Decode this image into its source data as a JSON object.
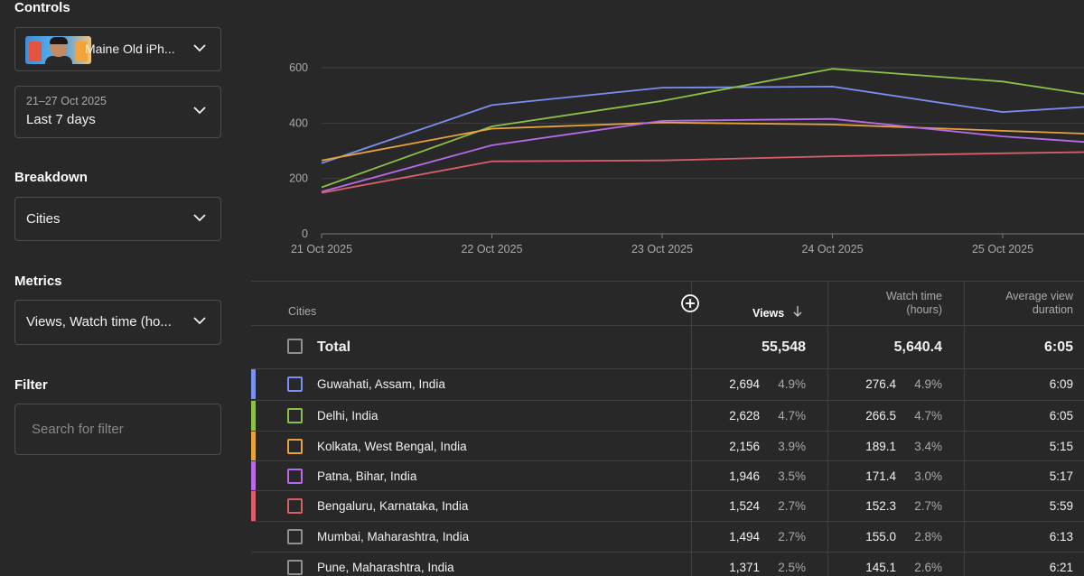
{
  "controls": {
    "title": "Controls",
    "video_title": "Maine Old iPh...",
    "date_range": "21–27 Oct 2025",
    "date_label": "Last 7 days"
  },
  "breakdown": {
    "title": "Breakdown",
    "value": "Cities"
  },
  "metrics": {
    "title": "Metrics",
    "value": "Views, Watch time (ho..."
  },
  "filter": {
    "title": "Filter",
    "placeholder": "Search for filter"
  },
  "chart_data": {
    "type": "line",
    "title": "",
    "xlabel": "",
    "ylabel": "",
    "categories": [
      "21 Oct 2025",
      "22 Oct 2025",
      "23 Oct 2025",
      "24 Oct 2025",
      "25 Oct 2025"
    ],
    "x_values": [
      0,
      1,
      2,
      3,
      4,
      4.48
    ],
    "y_ticks": [
      0,
      200,
      400,
      600
    ],
    "ylim": [
      0,
      600
    ],
    "series": [
      {
        "name": "Guwahati, Assam, India",
        "color": "#7b8ff0",
        "values": [
          255,
          465,
          528,
          532,
          440,
          458
        ]
      },
      {
        "name": "Delhi, India",
        "color": "#8cc04a",
        "values": [
          168,
          388,
          480,
          596,
          550,
          505
        ]
      },
      {
        "name": "Kolkata, West Bengal, India",
        "color": "#e8a33c",
        "values": [
          265,
          380,
          402,
          395,
          372,
          362
        ]
      },
      {
        "name": "Patna, Bihar, India",
        "color": "#b86ae8",
        "values": [
          152,
          320,
          408,
          415,
          352,
          332
        ]
      },
      {
        "name": "Bengaluru, Karnataka, India",
        "color": "#d85f6a",
        "values": [
          148,
          262,
          265,
          280,
          291,
          295
        ]
      }
    ]
  },
  "table": {
    "headers": {
      "cities": "Cities",
      "views": "Views",
      "watch_time_line1": "Watch time",
      "watch_time_line2": "(hours)",
      "avd_line1": "Average view",
      "avd_line2": "duration"
    },
    "total": {
      "label": "Total",
      "views": "55,548",
      "watch_time": "5,640.4",
      "avd": "6:05"
    },
    "rows": [
      {
        "city": "Guwahati, Assam, India",
        "views": "2,694",
        "views_pct": "4.9%",
        "watch": "276.4",
        "watch_pct": "4.9%",
        "avd": "6:09",
        "color": "#7b8ff0",
        "selected": true
      },
      {
        "city": "Delhi, India",
        "views": "2,628",
        "views_pct": "4.7%",
        "watch": "266.5",
        "watch_pct": "4.7%",
        "avd": "6:05",
        "color": "#8cc04a",
        "selected": true
      },
      {
        "city": "Kolkata, West Bengal, India",
        "views": "2,156",
        "views_pct": "3.9%",
        "watch": "189.1",
        "watch_pct": "3.4%",
        "avd": "5:15",
        "color": "#e8a33c",
        "selected": true
      },
      {
        "city": "Patna, Bihar, India",
        "views": "1,946",
        "views_pct": "3.5%",
        "watch": "171.4",
        "watch_pct": "3.0%",
        "avd": "5:17",
        "color": "#b86ae8",
        "selected": true
      },
      {
        "city": "Bengaluru, Karnataka, India",
        "views": "1,524",
        "views_pct": "2.7%",
        "watch": "152.3",
        "watch_pct": "2.7%",
        "avd": "5:59",
        "color": "#d85f6a",
        "selected": true
      },
      {
        "city": "Mumbai, Maharashtra, India",
        "views": "1,494",
        "views_pct": "2.7%",
        "watch": "155.0",
        "watch_pct": "2.8%",
        "avd": "6:13",
        "color": "#909090",
        "selected": false
      },
      {
        "city": "Pune, Maharashtra, India",
        "views": "1,371",
        "views_pct": "2.5%",
        "watch": "145.1",
        "watch_pct": "2.6%",
        "avd": "6:21",
        "color": "#909090",
        "selected": false
      }
    ]
  }
}
